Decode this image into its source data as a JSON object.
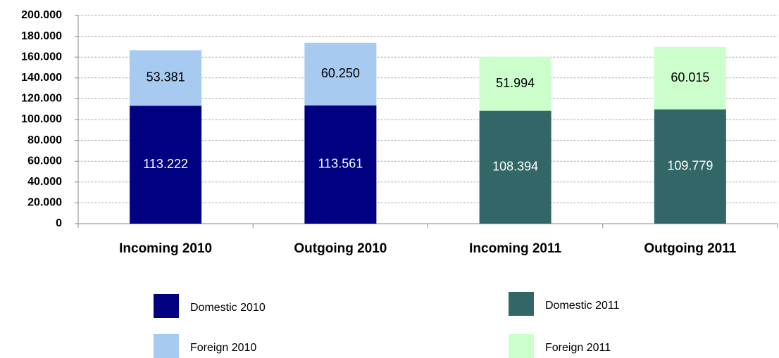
{
  "chart_data": {
    "type": "stacked_bar",
    "categories": [
      "Incoming 2010",
      "Outgoing 2010",
      "Incoming 2011",
      "Outgoing 2011"
    ],
    "series": [
      {
        "name": "Domestic 2010",
        "color": "#000080",
        "values": [
          113222,
          113561,
          null,
          null
        ],
        "value_labels": [
          "113.222",
          "113.561",
          null,
          null
        ]
      },
      {
        "name": "Foreign 2010",
        "color": "#a6caf0",
        "values": [
          53381,
          60250,
          null,
          null
        ],
        "value_labels": [
          "53.381",
          "60.250",
          null,
          null
        ]
      },
      {
        "name": "Domestic 2011",
        "color": "#336666",
        "values": [
          null,
          null,
          108394,
          109779
        ],
        "value_labels": [
          null,
          null,
          "108.394",
          "109.779"
        ]
      },
      {
        "name": "Foreign 2011",
        "color": "#ccffcc",
        "values": [
          null,
          null,
          51994,
          60015
        ],
        "value_labels": [
          null,
          null,
          "51.994",
          "60.015"
        ]
      }
    ],
    "ylim": [
      0,
      200000
    ],
    "yticks": [
      0,
      {
        "value": 20000,
        "label": "20.000"
      },
      {
        "value": 40000,
        "label": "40.000"
      },
      {
        "value": 60000,
        "label": "60.000"
      },
      {
        "value": 80000,
        "label": "80.000"
      },
      {
        "value": 100000,
        "label": "100.000"
      },
      {
        "value": 120000,
        "label": "120.000"
      },
      {
        "value": 140000,
        "label": "140.000"
      },
      {
        "value": 160000,
        "label": "160.000"
      },
      {
        "value": 180000,
        "label": "180.000"
      },
      {
        "value": 200000,
        "label": "200.000"
      }
    ],
    "grid": true
  }
}
